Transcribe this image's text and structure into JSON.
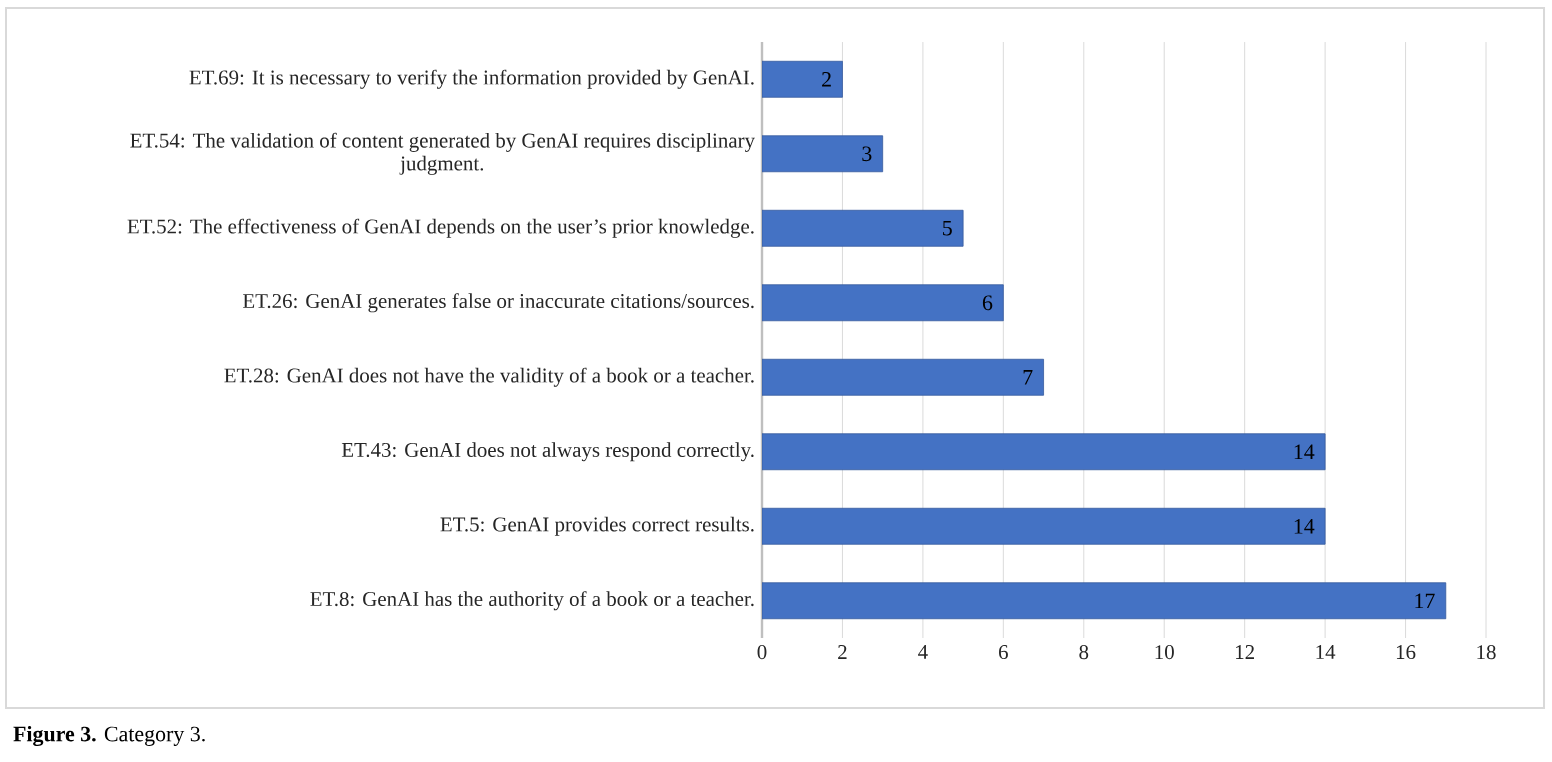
{
  "chart_data": {
    "type": "bar",
    "orientation": "horizontal",
    "categories": [
      "ET.69: It is necessary to verify the information provided by GenAI.",
      "ET.54: The validation of content generated by GenAI requires disciplinary judgment.",
      "ET.52: The effectiveness of GenAI depends on the user’s prior knowledge.",
      "ET.26: GenAI generates false or inaccurate citations/sources.",
      "ET.28: GenAI does not have the validity of a book or a teacher.",
      "ET.43: GenAI does not always respond correctly.",
      "ET.5: GenAI provides correct results.",
      "ET.8: GenAI has the authority of a book or a teacher."
    ],
    "values": [
      2,
      3,
      5,
      6,
      7,
      14,
      14,
      17
    ],
    "color": "#4472c4",
    "xlim": [
      0,
      18
    ],
    "xticks": [
      0,
      2,
      4,
      6,
      8,
      10,
      12,
      14,
      16,
      18
    ],
    "grid": "x",
    "data_labels": true,
    "annotations": [
      "**Figure 3.** Category 3."
    ]
  }
}
